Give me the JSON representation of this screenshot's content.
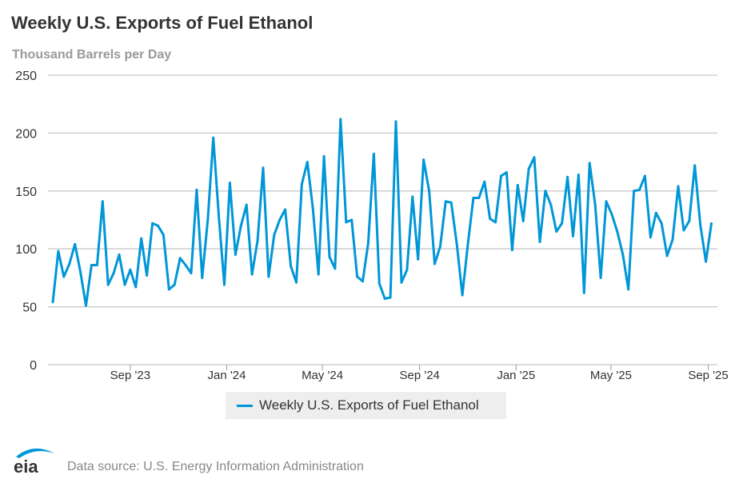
{
  "chart_data": {
    "type": "line",
    "title": "Weekly U.S. Exports of Fuel Ethanol",
    "ylabel": "Thousand Barrels per Day",
    "ylim": [
      0,
      250
    ],
    "yticks": [
      0,
      50,
      100,
      150,
      200,
      250
    ],
    "xtick_labels": [
      "Sep '23",
      "Jan '24",
      "May '24",
      "Sep '24",
      "Jan '25",
      "May '25",
      "Sep '25"
    ],
    "xtick_dates": [
      "2023-09-01",
      "2024-01-01",
      "2024-05-01",
      "2024-09-01",
      "2025-01-01",
      "2025-05-01",
      "2025-09-01"
    ],
    "grid": true,
    "legend_position": "bottom",
    "color": "#0096d7",
    "series": [
      {
        "name": "Weekly U.S. Exports of Fuel Ethanol",
        "x": [
          "2023-05-26",
          "2023-06-02",
          "2023-06-09",
          "2023-06-16",
          "2023-06-23",
          "2023-06-30",
          "2023-07-07",
          "2023-07-14",
          "2023-07-21",
          "2023-07-28",
          "2023-08-04",
          "2023-08-11",
          "2023-08-18",
          "2023-08-25",
          "2023-09-01",
          "2023-09-08",
          "2023-09-15",
          "2023-09-22",
          "2023-09-29",
          "2023-10-06",
          "2023-10-13",
          "2023-10-20",
          "2023-10-27",
          "2023-11-03",
          "2023-11-10",
          "2023-11-17",
          "2023-11-24",
          "2023-12-01",
          "2023-12-08",
          "2023-12-15",
          "2023-12-22",
          "2023-12-29",
          "2024-01-05",
          "2024-01-12",
          "2024-01-19",
          "2024-01-26",
          "2024-02-02",
          "2024-02-09",
          "2024-02-16",
          "2024-02-23",
          "2024-03-01",
          "2024-03-08",
          "2024-03-15",
          "2024-03-22",
          "2024-03-29",
          "2024-04-05",
          "2024-04-12",
          "2024-04-19",
          "2024-04-26",
          "2024-05-03",
          "2024-05-10",
          "2024-05-17",
          "2024-05-24",
          "2024-05-31",
          "2024-06-07",
          "2024-06-14",
          "2024-06-21",
          "2024-06-28",
          "2024-07-05",
          "2024-07-12",
          "2024-07-19",
          "2024-07-26",
          "2024-08-02",
          "2024-08-09",
          "2024-08-16",
          "2024-08-23",
          "2024-08-30",
          "2024-09-06",
          "2024-09-13",
          "2024-09-20",
          "2024-09-27",
          "2024-10-04",
          "2024-10-11",
          "2024-10-18",
          "2024-10-25",
          "2024-11-01",
          "2024-11-08",
          "2024-11-15",
          "2024-11-22",
          "2024-11-29",
          "2024-12-06",
          "2024-12-13",
          "2024-12-20",
          "2024-12-27",
          "2025-01-03",
          "2025-01-10",
          "2025-01-17",
          "2025-01-24",
          "2025-01-31",
          "2025-02-07",
          "2025-02-14",
          "2025-02-21",
          "2025-02-28",
          "2025-03-07",
          "2025-03-14",
          "2025-03-21",
          "2025-03-28",
          "2025-04-04",
          "2025-04-11",
          "2025-04-18",
          "2025-04-25",
          "2025-05-02",
          "2025-05-09",
          "2025-05-16",
          "2025-05-23",
          "2025-05-30",
          "2025-06-06",
          "2025-06-13",
          "2025-06-20",
          "2025-06-27",
          "2025-07-04",
          "2025-07-11",
          "2025-07-18",
          "2025-07-25",
          "2025-08-01",
          "2025-08-08",
          "2025-08-15",
          "2025-08-22",
          "2025-08-29",
          "2025-09-05"
        ],
        "values": [
          54,
          98,
          76,
          87,
          104,
          80,
          51,
          86,
          86,
          141,
          69,
          79,
          95,
          69,
          82,
          67,
          109,
          77,
          122,
          120,
          112,
          65,
          69,
          92,
          86,
          79,
          151,
          75,
          125,
          196,
          128,
          69,
          157,
          95,
          120,
          138,
          78,
          107,
          170,
          76,
          112,
          125,
          134,
          85,
          71,
          156,
          175,
          135,
          78,
          180,
          93,
          83,
          212,
          123,
          125,
          76,
          72,
          105,
          182,
          70,
          57,
          58,
          210,
          71,
          82,
          145,
          91,
          177,
          150,
          87,
          102,
          141,
          140,
          104,
          60,
          104,
          144,
          144,
          158,
          126,
          123,
          163,
          166,
          99,
          155,
          124,
          169,
          179,
          106,
          150,
          138,
          115,
          122,
          162,
          111,
          164,
          62,
          174,
          138,
          75,
          141,
          130,
          115,
          95,
          65,
          150,
          151,
          163,
          110,
          131,
          122,
          94,
          108,
          154,
          116,
          124,
          172,
          121,
          89,
          122
        ]
      }
    ]
  },
  "footer": {
    "source": "Data source: U.S. Energy Information Administration",
    "logo_text": "eia"
  }
}
